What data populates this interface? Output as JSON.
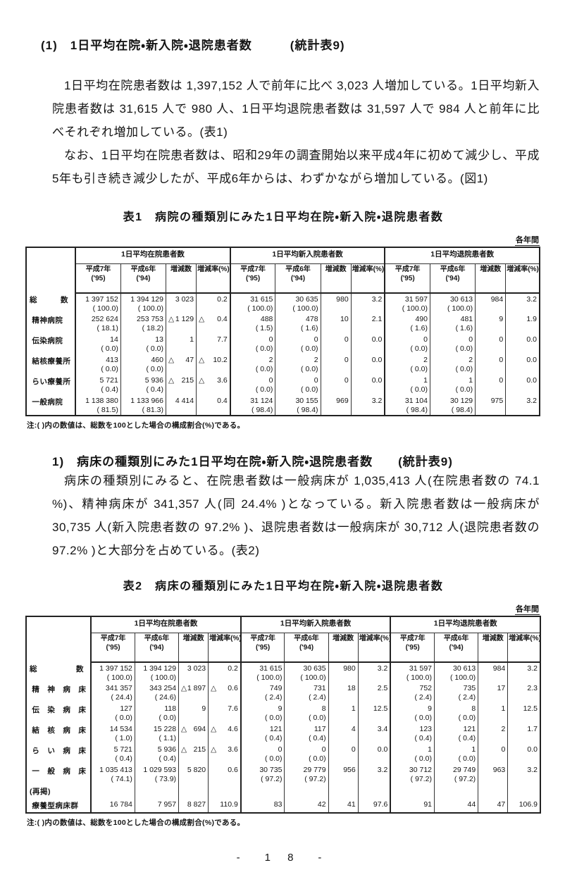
{
  "section": {
    "heading": "(1)　1日平均在院・新入院・退院患者数　　　(統計表9)",
    "para1": "1日平均在院患者数は 1,397,152 人で前年に比べ 3,023 人増加している。1日平均新入院患者数は 31,615 人で 980 人、1日平均退院患者数は 31,597 人で 984 人と前年に比べそれぞれ増加している。(表1)",
    "para2": "なお、1日平均在院患者数は、昭和29年の調査開始以来平成4年に初めて減少し、平成5年も引き続き減少したが、平成6年からは、わずかながら増加している。(図1)"
  },
  "subsection": {
    "heading": "1)　病床の種類別にみた1日平均在院・新入院・退院患者数　　(統計表9)",
    "para": "病床の種類別にみると、在院患者数は一般病床が 1,035,413 人(在院患者数の 74.1 %)、精神病床が 341,357 人(同 24.4% )となっている。新入院患者数は一般病床が 30,735 人(新入院患者数の 97.2% )、退院患者数は一般病床が 30,712 人(退院患者数の 97.2% )と大部分を占めている。(表2)"
  },
  "headers": {
    "groups": [
      "1日平均在院患者数",
      "1日平均新入院患者数",
      "1日平均退院患者数"
    ],
    "sub": [
      {
        "l1": "平成7年",
        "l2": "('95)"
      },
      {
        "l1": "平成6年",
        "l2": "('94)"
      },
      {
        "l1": "増減数",
        "l2": ""
      },
      {
        "l1": "増減率(%)",
        "l2": ""
      }
    ]
  },
  "table1": {
    "title": "表1　病院の種類別にみた1日平均在院・新入院・退院患者数",
    "period": "各年間",
    "note": "注:(  )内の数値は、総数を100とした場合の構成割合(%)である。",
    "rows": [
      {
        "label": "総　　　数",
        "cells": [
          {
            "v": "1 397 152",
            "p": "( 100.0)"
          },
          {
            "v": "1 394 129",
            "p": "( 100.0)"
          },
          {
            "v": "3 023"
          },
          {
            "v": "0.2"
          },
          {
            "v": "31 615",
            "p": "( 100.0)"
          },
          {
            "v": "30 635",
            "p": "( 100.0)"
          },
          {
            "v": "980"
          },
          {
            "v": "3.2"
          },
          {
            "v": "31 597",
            "p": "( 100.0)"
          },
          {
            "v": "30 613",
            "p": "( 100.0)"
          },
          {
            "v": "984"
          },
          {
            "v": "3.2"
          }
        ]
      },
      {
        "label": " 精神病院",
        "cells": [
          {
            "v": "252 624",
            "p": "( 18.1)"
          },
          {
            "v": "253 753",
            "p": "( 18.2)"
          },
          {
            "d": "△",
            "v": "1 129"
          },
          {
            "d": "△",
            "v": "0.4"
          },
          {
            "v": "488",
            "p": "( 1.5)"
          },
          {
            "v": "478",
            "p": "( 1.6)"
          },
          {
            "v": "10"
          },
          {
            "v": "2.1"
          },
          {
            "v": "490",
            "p": "( 1.6)"
          },
          {
            "v": "481",
            "p": "( 1.6)"
          },
          {
            "v": "9"
          },
          {
            "v": "1.9"
          }
        ]
      },
      {
        "label": " 伝染病院",
        "cells": [
          {
            "v": "14",
            "p": "( 0.0)"
          },
          {
            "v": "13",
            "p": "( 0.0)"
          },
          {
            "v": "1"
          },
          {
            "v": "7.7"
          },
          {
            "v": "0",
            "p": "( 0.0)"
          },
          {
            "v": "0",
            "p": "( 0.0)"
          },
          {
            "v": "0"
          },
          {
            "v": "0.0"
          },
          {
            "v": "0",
            "p": "( 0.0)"
          },
          {
            "v": "0",
            "p": "( 0.0)"
          },
          {
            "v": "0"
          },
          {
            "v": "0.0"
          }
        ]
      },
      {
        "label": " 結核療養所",
        "cells": [
          {
            "v": "413",
            "p": "( 0.0)"
          },
          {
            "v": "460",
            "p": "( 0.0)"
          },
          {
            "d": "△",
            "v": "47"
          },
          {
            "d": "△",
            "v": "10.2"
          },
          {
            "v": "2",
            "p": "( 0.0)"
          },
          {
            "v": "2",
            "p": "( 0.0)"
          },
          {
            "v": "0"
          },
          {
            "v": "0.0"
          },
          {
            "v": "2",
            "p": "( 0.0)"
          },
          {
            "v": "2",
            "p": "( 0.0)"
          },
          {
            "v": "0"
          },
          {
            "v": "0.0"
          }
        ]
      },
      {
        "label": " らい療養所",
        "cells": [
          {
            "v": "5 721",
            "p": "( 0.4)"
          },
          {
            "v": "5 936",
            "p": "( 0.4)"
          },
          {
            "d": "△",
            "v": "215"
          },
          {
            "d": "△",
            "v": "3.6"
          },
          {
            "v": "0",
            "p": "( 0.0)"
          },
          {
            "v": "0",
            "p": "( 0.0)"
          },
          {
            "v": "0"
          },
          {
            "v": "0.0"
          },
          {
            "v": "1",
            "p": "( 0.0)"
          },
          {
            "v": "1",
            "p": "( 0.0)"
          },
          {
            "v": "0"
          },
          {
            "v": "0.0"
          }
        ]
      },
      {
        "label": " 一般病院",
        "cells": [
          {
            "v": "1 138 380",
            "p": "( 81.5)"
          },
          {
            "v": "1 133 966",
            "p": "( 81.3)"
          },
          {
            "v": "4 414"
          },
          {
            "v": "0.4"
          },
          {
            "v": "31 124",
            "p": "( 98.4)"
          },
          {
            "v": "30 155",
            "p": "( 98.4)"
          },
          {
            "v": "969"
          },
          {
            "v": "3.2"
          },
          {
            "v": "31 104",
            "p": "( 98.4)"
          },
          {
            "v": "30 129",
            "p": "( 98.4)"
          },
          {
            "v": "975"
          },
          {
            "v": "3.2"
          }
        ]
      }
    ]
  },
  "table2": {
    "title": "表2　病床の種類別にみた1日平均在院・新入院・退院患者数",
    "period": "各年間",
    "note": "注:(  )内の数値は、総数を100とした場合の構成割合(%)である。",
    "rows": [
      {
        "label": "総　　　　　数",
        "cells": [
          {
            "v": "1 397 152",
            "p": "( 100.0)"
          },
          {
            "v": "1 394 129",
            "p": "( 100.0)"
          },
          {
            "v": "3 023"
          },
          {
            "v": "0.2"
          },
          {
            "v": "31 615",
            "p": "( 100.0)"
          },
          {
            "v": "30 635",
            "p": "( 100.0)"
          },
          {
            "v": "980"
          },
          {
            "v": "3.2"
          },
          {
            "v": "31 597",
            "p": "( 100.0)"
          },
          {
            "v": "30 613",
            "p": "( 100.0)"
          },
          {
            "v": "984"
          },
          {
            "v": "3.2"
          }
        ]
      },
      {
        "label": " 精　神　病　床",
        "cells": [
          {
            "v": "341 357",
            "p": "( 24.4)"
          },
          {
            "v": "343 254",
            "p": "( 24.6)"
          },
          {
            "d": "△",
            "v": "1 897"
          },
          {
            "d": "△",
            "v": "0.6"
          },
          {
            "v": "749",
            "p": "( 2.4)"
          },
          {
            "v": "731",
            "p": "( 2.4)"
          },
          {
            "v": "18"
          },
          {
            "v": "2.5"
          },
          {
            "v": "752",
            "p": "( 2.4)"
          },
          {
            "v": "735",
            "p": "( 2.4)"
          },
          {
            "v": "17"
          },
          {
            "v": "2.3"
          }
        ]
      },
      {
        "label": " 伝　染　病　床",
        "cells": [
          {
            "v": "127",
            "p": "( 0.0)"
          },
          {
            "v": "118",
            "p": "( 0.0)"
          },
          {
            "v": "9"
          },
          {
            "v": "7.6"
          },
          {
            "v": "9",
            "p": "( 0.0)"
          },
          {
            "v": "8",
            "p": "( 0.0)"
          },
          {
            "v": "1"
          },
          {
            "v": "12.5"
          },
          {
            "v": "9",
            "p": "( 0.0)"
          },
          {
            "v": "8",
            "p": "( 0.0)"
          },
          {
            "v": "1"
          },
          {
            "v": "12.5"
          }
        ]
      },
      {
        "label": " 結　核　病　床",
        "cells": [
          {
            "v": "14 534",
            "p": "( 1.0)"
          },
          {
            "v": "15 228",
            "p": "( 1.1)"
          },
          {
            "d": "△",
            "v": "694"
          },
          {
            "d": "△",
            "v": "4.6"
          },
          {
            "v": "121",
            "p": "( 0.4)"
          },
          {
            "v": "117",
            "p": "( 0.4)"
          },
          {
            "v": "4"
          },
          {
            "v": "3.4"
          },
          {
            "v": "123",
            "p": "( 0.4)"
          },
          {
            "v": "121",
            "p": "( 0.4)"
          },
          {
            "v": "2"
          },
          {
            "v": "1.7"
          }
        ]
      },
      {
        "label": " ら　い　病　床",
        "cells": [
          {
            "v": "5 721",
            "p": "( 0.4)"
          },
          {
            "v": "5 936",
            "p": "( 0.4)"
          },
          {
            "d": "△",
            "v": "215"
          },
          {
            "d": "△",
            "v": "3.6"
          },
          {
            "v": "0",
            "p": "( 0.0)"
          },
          {
            "v": "0",
            "p": "( 0.0)"
          },
          {
            "v": "0"
          },
          {
            "v": "0.0"
          },
          {
            "v": "1",
            "p": "( 0.0)"
          },
          {
            "v": "1",
            "p": "( 0.0)"
          },
          {
            "v": "0"
          },
          {
            "v": "0.0"
          }
        ]
      },
      {
        "label": " 一　般　病　床",
        "cells": [
          {
            "v": "1 035 413",
            "p": "( 74.1)"
          },
          {
            "v": "1 029 593",
            "p": "( 73.9)"
          },
          {
            "v": "5 820"
          },
          {
            "v": "0.6"
          },
          {
            "v": "30 735",
            "p": "( 97.2)"
          },
          {
            "v": "29 779",
            "p": "( 97.2)"
          },
          {
            "v": "956"
          },
          {
            "v": "3.2"
          },
          {
            "v": "30 712",
            "p": "( 97.2)"
          },
          {
            "v": "29 749",
            "p": "( 97.2)"
          },
          {
            "v": "963"
          },
          {
            "v": "3.2"
          }
        ]
      },
      {
        "label": "(再掲)",
        "cells": []
      },
      {
        "label": " 療養型病床群",
        "cells": [
          {
            "v": "16 784"
          },
          {
            "v": "7 957"
          },
          {
            "v": "8 827"
          },
          {
            "v": "110.9"
          },
          {
            "v": "83"
          },
          {
            "v": "42"
          },
          {
            "v": "41"
          },
          {
            "v": "97.6"
          },
          {
            "v": "91"
          },
          {
            "v": "44"
          },
          {
            "v": "47"
          },
          {
            "v": "106.9"
          }
        ]
      }
    ]
  },
  "page": {
    "number": "-　1 8　-"
  }
}
